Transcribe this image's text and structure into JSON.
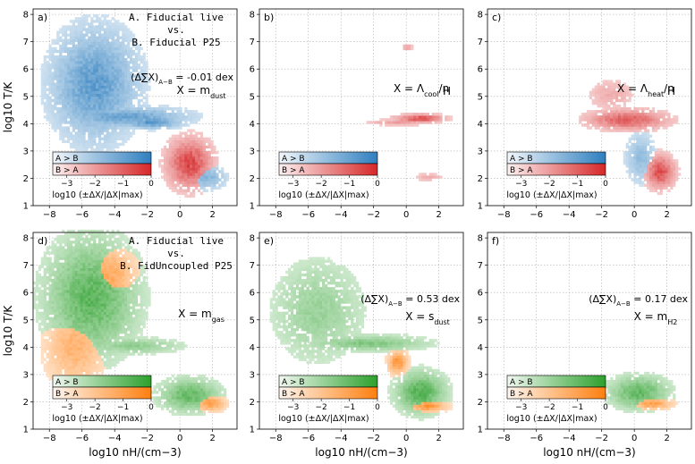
{
  "chart_data": {
    "type": "heatmap",
    "x_axis": {
      "label": "log10 nH/(cm−3)",
      "range": [
        -9,
        3.5
      ],
      "ticks": [
        "−8",
        "−6",
        "−4",
        "−2",
        "0",
        "2"
      ]
    },
    "y_axis": {
      "label": "log10 T/K",
      "range": [
        1,
        8.2
      ],
      "ticks": [
        "1",
        "2",
        "3",
        "4",
        "5",
        "6",
        "7",
        "8"
      ]
    },
    "colorbar": {
      "label": "log10 (±ΔX/|ΔX|max)",
      "ticks": [
        "−3",
        "−2",
        "−1",
        "0"
      ],
      "range": [
        -3.5,
        0
      ],
      "rows": [
        "A > B",
        "B > A"
      ]
    },
    "colors": {
      "top_a": "#2f7fbf",
      "top_b": "#d62728",
      "bottom_a": "#2ca02c",
      "bottom_b": "#ff7f0e"
    },
    "panels": [
      {
        "id": "a",
        "label": "a)",
        "quantity": "X = m_dust",
        "sub": "dust",
        "delta": "-0.01 dex",
        "comparison": [
          "A. Fiducial live",
          "vs.",
          "B. Fiducial P25"
        ],
        "colormap": "blue-red",
        "blobs": [
          {
            "cx": -5.3,
            "cy": 5.4,
            "sx": 1.7,
            "sy": 1.3,
            "c": "a",
            "w": 0.85
          },
          {
            "cx": -3.5,
            "cy": 4.2,
            "sx": 2.5,
            "sy": 0.25,
            "c": "a",
            "w": 0.8
          },
          {
            "cx": -1.8,
            "cy": 4.0,
            "sx": 1.2,
            "sy": 0.15,
            "c": "a",
            "w": 0.9
          },
          {
            "cx": 0.5,
            "cy": 2.5,
            "sx": 0.9,
            "sy": 0.6,
            "c": "b",
            "w": 0.95
          },
          {
            "cx": 1.5,
            "cy": 2.0,
            "sx": 0.8,
            "sy": 0.3,
            "c": "a",
            "w": 0.6
          }
        ]
      },
      {
        "id": "b",
        "label": "b)",
        "quantity": "X = Λ_cool/n_H",
        "sub": "cool",
        "delta": "",
        "comparison": [],
        "colormap": "blue-red",
        "blobs": [
          {
            "cx": 0.8,
            "cy": 4.15,
            "sx": 1.0,
            "sy": 0.1,
            "c": "b",
            "w": 0.9
          },
          {
            "cx": -0.5,
            "cy": 4.0,
            "sx": 1.3,
            "sy": 0.08,
            "c": "b",
            "w": 0.4
          },
          {
            "cx": 1.3,
            "cy": 2.0,
            "sx": 0.6,
            "sy": 0.1,
            "c": "b",
            "w": 0.3
          },
          {
            "cx": 0.0,
            "cy": 6.75,
            "sx": 0.2,
            "sy": 0.05,
            "c": "b",
            "w": 0.6
          }
        ]
      },
      {
        "id": "c",
        "label": "c)",
        "quantity": "X = Λ_heat/n_H",
        "sub": "heat",
        "delta": "",
        "comparison": [],
        "colormap": "blue-red",
        "blobs": [
          {
            "cx": -0.5,
            "cy": 4.1,
            "sx": 1.6,
            "sy": 0.25,
            "c": "b",
            "w": 0.8
          },
          {
            "cx": 0.3,
            "cy": 2.7,
            "sx": 0.6,
            "sy": 0.6,
            "c": "a",
            "w": 0.5
          },
          {
            "cx": 1.5,
            "cy": 2.2,
            "sx": 0.6,
            "sy": 0.4,
            "c": "b",
            "w": 0.9
          },
          {
            "cx": -1.5,
            "cy": 5.0,
            "sx": 1.0,
            "sy": 0.4,
            "c": "b",
            "w": 0.3
          }
        ]
      },
      {
        "id": "d",
        "label": "d)",
        "quantity": "X = m_gas",
        "sub": "gas",
        "delta": "",
        "comparison": [
          "A. Fiducial live",
          "vs.",
          "B. FidUncoupled P25"
        ],
        "colormap": "green-orange",
        "blobs": [
          {
            "cx": -5.5,
            "cy": 5.8,
            "sx": 1.8,
            "sy": 1.4,
            "c": "a",
            "w": 0.85
          },
          {
            "cx": -4.5,
            "cy": 6.5,
            "sx": 1.2,
            "sy": 0.8,
            "c": "b",
            "w": 0.7
          },
          {
            "cx": -6.5,
            "cy": 4.0,
            "sx": 1.2,
            "sy": 1.0,
            "c": "b",
            "w": 0.6
          },
          {
            "cx": -3.0,
            "cy": 4.0,
            "sx": 2.0,
            "sy": 0.2,
            "c": "a",
            "w": 0.5
          },
          {
            "cx": 0.5,
            "cy": 2.2,
            "sx": 1.2,
            "sy": 0.4,
            "c": "a",
            "w": 0.8
          },
          {
            "cx": 1.8,
            "cy": 1.9,
            "sx": 0.6,
            "sy": 0.2,
            "c": "b",
            "w": 0.8
          }
        ]
      },
      {
        "id": "e",
        "label": "e)",
        "quantity": "X = s_dust",
        "sub": "dust",
        "delta": "0.53 dex",
        "comparison": [],
        "colormap": "green-orange",
        "blobs": [
          {
            "cx": -5.5,
            "cy": 5.3,
            "sx": 1.8,
            "sy": 1.2,
            "c": "a",
            "w": 0.45
          },
          {
            "cx": -2.5,
            "cy": 4.1,
            "sx": 2.5,
            "sy": 0.2,
            "c": "a",
            "w": 0.6
          },
          {
            "cx": -0.6,
            "cy": 3.4,
            "sx": 0.4,
            "sy": 0.3,
            "c": "b",
            "w": 0.9
          },
          {
            "cx": 0.8,
            "cy": 2.3,
            "sx": 1.0,
            "sy": 0.5,
            "c": "a",
            "w": 0.9
          },
          {
            "cx": 1.2,
            "cy": 1.8,
            "sx": 0.8,
            "sy": 0.15,
            "c": "b",
            "w": 0.9
          }
        ]
      },
      {
        "id": "f",
        "label": "f)",
        "quantity": "X = m_H2",
        "sub": "H2",
        "delta": "0.17 dex",
        "comparison": [],
        "colormap": "green-orange",
        "blobs": [
          {
            "cx": 0.2,
            "cy": 2.3,
            "sx": 1.2,
            "sy": 0.4,
            "c": "a",
            "w": 0.8
          },
          {
            "cx": 1.0,
            "cy": 1.9,
            "sx": 0.8,
            "sy": 0.15,
            "c": "b",
            "w": 0.85
          }
        ]
      }
    ]
  }
}
